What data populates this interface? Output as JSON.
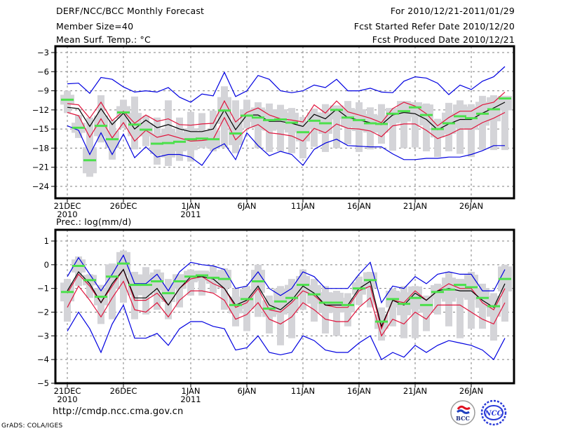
{
  "header": {
    "title": "DERF/NCC/BCC Monthly Forecast",
    "member_size": "Member Size=40",
    "variable": "Mean Surf. Temp.: °C",
    "period": "For 2010/12/21-2011/01/29",
    "started_date": "Fcst Started Refer Date 2010/12/20",
    "produced_date": "Fcst Produced Date 2010/12/21"
  },
  "footer": {
    "url": "http://cmdp.ncc.cma.gov.cn",
    "credit": "GrADS: COLA/IGES",
    "logo_left_label": "BCC",
    "logo_right_label": "NCC"
  },
  "colors": {
    "envelope": "#0000e0",
    "spread": "#e0143c",
    "mean": "#000000",
    "member": "#4ce04c",
    "box": "#d4d4d8",
    "grid": "#808080"
  },
  "chart_data": [
    {
      "type": "line",
      "title": "Mean Surf. Temp.: °C",
      "ylabel": "Mean Surf. Temp. (°C)",
      "ylim": [
        -26,
        -2
      ],
      "yticks": [
        -3,
        -6,
        -9,
        -12,
        -15,
        -18,
        -21,
        -24
      ],
      "ytick_labels": [
        "-3",
        "-6",
        "-9",
        "-12",
        "-15",
        "-18",
        "-21",
        "-24"
      ],
      "xticks": [
        0,
        5,
        11,
        16,
        21,
        26,
        31,
        36
      ],
      "xtick_labels": [
        "21DEC",
        "26DEC",
        "1JAN",
        "6JAN",
        "11JAN",
        "16JAN",
        "21JAN",
        "26JAN"
      ],
      "xtick_sublabels": [
        "2010",
        "",
        "2011",
        "",
        "",
        "",
        "",
        ""
      ],
      "grid": true,
      "x_days": 40,
      "series": [
        {
          "name": "max",
          "color_key": "envelope",
          "values": [
            -7.9,
            -7.8,
            -9.4,
            -6.9,
            -7.2,
            -8.4,
            -9.2,
            -9.0,
            -9.2,
            -8.5,
            -10.0,
            -10.8,
            -9.5,
            -9.8,
            -6.1,
            -9.9,
            -9.0,
            -6.6,
            -7.2,
            -9.0,
            -9.3,
            -9.0,
            -8.1,
            -8.5,
            -7.2,
            -9.0,
            -9.0,
            -8.6,
            -9.2,
            -9.3,
            -7.5,
            -6.8,
            -7.0,
            -7.8,
            -9.6,
            -8.1,
            -8.8,
            -7.5,
            -6.8,
            -5.2
          ]
        },
        {
          "name": "upper",
          "color_key": "spread",
          "values": [
            -11.0,
            -11.2,
            -13.3,
            -10.8,
            -13.7,
            -12.2,
            -14.1,
            -12.8,
            -13.8,
            -13.4,
            -14.3,
            -14.4,
            -14.2,
            -14.1,
            -10.6,
            -13.9,
            -12.4,
            -11.7,
            -12.8,
            -13.4,
            -13.6,
            -13.9,
            -11.2,
            -12.5,
            -10.6,
            -12.3,
            -12.8,
            -13.3,
            -14.0,
            -11.8,
            -10.8,
            -11.4,
            -12.6,
            -14.5,
            -13.2,
            -12.2,
            -12.2,
            -11.2,
            -10.8,
            -9.2
          ]
        },
        {
          "name": "mean",
          "color_key": "mean",
          "values": [
            -11.6,
            -11.8,
            -14.6,
            -11.8,
            -14.3,
            -12.5,
            -15.0,
            -13.6,
            -14.8,
            -14.3,
            -15.0,
            -15.4,
            -15.4,
            -15.0,
            -12.0,
            -15.1,
            -12.8,
            -12.8,
            -13.8,
            -13.8,
            -14.1,
            -14.6,
            -12.7,
            -13.4,
            -11.9,
            -13.2,
            -13.6,
            -14.0,
            -14.3,
            -12.8,
            -12.4,
            -12.6,
            -13.5,
            -15.1,
            -14.2,
            -13.5,
            -13.5,
            -12.5,
            -11.7,
            -10.8
          ]
        },
        {
          "name": "lower",
          "color_key": "spread",
          "values": [
            -12.4,
            -12.9,
            -16.3,
            -13.4,
            -16.4,
            -14.0,
            -16.9,
            -15.2,
            -16.3,
            -15.9,
            -16.4,
            -16.9,
            -16.8,
            -16.6,
            -13.2,
            -16.7,
            -15.0,
            -14.3,
            -15.6,
            -15.8,
            -16.1,
            -16.9,
            -14.9,
            -15.6,
            -14.2,
            -14.9,
            -15.0,
            -15.3,
            -16.2,
            -14.5,
            -14.2,
            -14.2,
            -15.2,
            -16.5,
            -15.9,
            -15.0,
            -15.0,
            -14.0,
            -13.3,
            -12.4
          ]
        },
        {
          "name": "min",
          "color_key": "envelope",
          "values": [
            -14.5,
            -15.2,
            -19.0,
            -15.6,
            -19.0,
            -15.8,
            -19.5,
            -17.8,
            -19.4,
            -19.0,
            -19.0,
            -19.4,
            -20.7,
            -18.2,
            -17.3,
            -19.8,
            -15.6,
            -17.6,
            -19.2,
            -18.5,
            -19.0,
            -20.7,
            -18.2,
            -17.2,
            -16.6,
            -17.6,
            -17.7,
            -17.8,
            -17.8,
            -18.9,
            -19.8,
            -19.8,
            -19.6,
            -19.6,
            -19.4,
            -19.4,
            -19.0,
            -18.4,
            -17.6,
            -17.6
          ]
        },
        {
          "name": "member",
          "color_key": "member",
          "values": [
            -10.4,
            -14.8,
            -19.9,
            -14.5,
            -16.6,
            -12.4,
            -14.3,
            -15.1,
            -17.3,
            -17.2,
            -17.0,
            -16.6,
            -16.5,
            -16.6,
            -12.1,
            -15.7,
            -12.9,
            -13.2,
            -13.6,
            -13.5,
            -14.0,
            -15.5,
            -13.7,
            -14.1,
            -12.0,
            -13.2,
            -13.6,
            -14.1,
            -14.2,
            -12.6,
            -12.2,
            -11.6,
            -12.8,
            -15.0,
            -14.1,
            -13.0,
            -13.3,
            -12.6,
            -11.9,
            -10.2
          ]
        },
        {
          "name": "box_high",
          "color_key": "box",
          "values": [
            -9.0,
            -12.8,
            -13.2,
            -9.7,
            -13.6,
            -10.4,
            -9.9,
            -12.9,
            -13.2,
            -10.5,
            -13.2,
            -12.3,
            -12.5,
            -12.1,
            -8.3,
            -10.5,
            -10.4,
            -10.8,
            -11.0,
            -11.2,
            -11.7,
            -13.1,
            -11.8,
            -11.1,
            -11.3,
            -10.6,
            -10.8,
            -11.6,
            -11.1,
            -11.7,
            -10.6,
            -10.8,
            -11.0,
            -13.4,
            -10.9,
            -10.5,
            -11.1,
            -9.8,
            -9.7,
            -9.8
          ]
        },
        {
          "name": "box_low",
          "color_key": "box",
          "values": [
            -12.5,
            -16.4,
            -22.5,
            -17.1,
            -19.8,
            -14.9,
            -18.2,
            -17.7,
            -20.6,
            -20.8,
            -20.0,
            -20.1,
            -18.0,
            -18.5,
            -17.9,
            -18.8,
            -14.9,
            -18.0,
            -18.6,
            -18.5,
            -18.8,
            -19.6,
            -17.8,
            -18.6,
            -18.0,
            -17.4,
            -18.6,
            -18.2,
            -17.3,
            -18.4,
            -18.0,
            -17.9,
            -18.5,
            -19.4,
            -18.5,
            -18.9,
            -19.4,
            -18.3,
            -18.3,
            -18.3
          ]
        }
      ]
    },
    {
      "type": "line",
      "title": "Prec.: log(mm/d)",
      "ylabel": "Prec. log(mm/d)",
      "ylim": [
        -5,
        1.5
      ],
      "yticks": [
        1,
        0,
        -1,
        -2,
        -3,
        -4,
        -5
      ],
      "ytick_labels": [
        "1",
        "0",
        "-1",
        "-2",
        "-3",
        "-4",
        "-5"
      ],
      "xticks": [
        0,
        5,
        11,
        16,
        21,
        26,
        31,
        36
      ],
      "xtick_labels": [
        "21DEC",
        "26DEC",
        "1JAN",
        "6JAN",
        "11JAN",
        "16JAN",
        "21JAN",
        "26JAN"
      ],
      "xtick_sublabels": [
        "2010",
        "",
        "2011",
        "",
        "",
        "",
        "",
        ""
      ],
      "grid": true,
      "x_days": 40,
      "series": [
        {
          "name": "max",
          "color_key": "envelope",
          "values": [
            -0.5,
            0.3,
            -0.4,
            -1.1,
            -0.4,
            0.4,
            -0.8,
            -0.8,
            -0.4,
            -1.1,
            -0.3,
            0.1,
            0.0,
            -0.05,
            -0.2,
            -1.0,
            -0.9,
            -0.3,
            -1.0,
            -1.3,
            -1.0,
            -0.3,
            -0.5,
            -1.0,
            -1.0,
            -1.0,
            -0.4,
            0.1,
            -1.6,
            -0.9,
            -1.0,
            -0.5,
            -0.8,
            -0.4,
            -0.3,
            -0.4,
            -0.4,
            -1.1,
            -1.1,
            -0.2
          ]
        },
        {
          "name": "upper",
          "color_key": "spread",
          "values": [
            -1.2,
            -0.4,
            -0.9,
            -1.6,
            -0.9,
            -0.2,
            -1.5,
            -1.5,
            -1.2,
            -1.7,
            -1.0,
            -0.6,
            -0.5,
            -0.8,
            -1.0,
            -1.8,
            -1.6,
            -1.0,
            -1.9,
            -2.0,
            -1.6,
            -1.1,
            -1.3,
            -1.7,
            -1.8,
            -1.8,
            -1.1,
            -0.9,
            -2.7,
            -1.5,
            -1.6,
            -1.1,
            -1.5,
            -1.1,
            -0.8,
            -1.0,
            -1.0,
            -1.6,
            -1.9,
            -1.0
          ]
        },
        {
          "name": "mean",
          "color_key": "mean",
          "values": [
            -1.1,
            -0.3,
            -0.8,
            -1.6,
            -0.8,
            -0.2,
            -1.4,
            -1.4,
            -1.0,
            -1.7,
            -1.0,
            -0.5,
            -0.5,
            -0.6,
            -1.0,
            -1.7,
            -1.5,
            -0.9,
            -1.7,
            -1.9,
            -1.5,
            -0.9,
            -1.2,
            -1.7,
            -1.7,
            -1.7,
            -1.0,
            -0.7,
            -2.6,
            -1.5,
            -1.7,
            -1.2,
            -1.5,
            -1.1,
            -1.0,
            -1.1,
            -1.1,
            -1.5,
            -1.8,
            -0.8
          ]
        },
        {
          "name": "lower",
          "color_key": "spread",
          "values": [
            -1.8,
            -0.9,
            -1.5,
            -2.2,
            -1.4,
            -0.7,
            -1.9,
            -2.0,
            -1.6,
            -2.2,
            -1.5,
            -1.1,
            -1.1,
            -1.2,
            -1.5,
            -2.3,
            -2.1,
            -1.6,
            -2.3,
            -2.5,
            -2.2,
            -1.6,
            -1.9,
            -2.3,
            -2.4,
            -2.4,
            -1.8,
            -1.4,
            -3.0,
            -2.3,
            -2.5,
            -2.0,
            -2.3,
            -1.7,
            -1.7,
            -1.7,
            -2.0,
            -2.3,
            -2.5,
            -1.6
          ]
        },
        {
          "name": "min",
          "color_key": "envelope",
          "values": [
            -2.8,
            -2.0,
            -2.7,
            -3.7,
            -2.5,
            -1.7,
            -3.1,
            -3.1,
            -2.9,
            -3.4,
            -2.7,
            -2.4,
            -2.4,
            -2.6,
            -2.7,
            -3.6,
            -3.5,
            -3.0,
            -3.7,
            -3.8,
            -3.7,
            -3.0,
            -3.2,
            -3.6,
            -3.7,
            -3.7,
            -3.3,
            -3.0,
            -4.0,
            -3.7,
            -3.9,
            -3.4,
            -3.7,
            -3.4,
            -3.2,
            -3.3,
            -3.4,
            -3.6,
            -4.0,
            -3.1
          ]
        },
        {
          "name": "member",
          "color_key": "member",
          "values": [
            -1.15,
            -0.05,
            -0.65,
            -1.35,
            -0.5,
            0.05,
            -0.85,
            -0.85,
            -0.7,
            -1.2,
            -0.7,
            -0.5,
            -0.45,
            -0.55,
            -0.6,
            -1.7,
            -1.45,
            -0.7,
            -1.85,
            -1.55,
            -1.4,
            -0.85,
            -1.25,
            -1.6,
            -1.6,
            -1.7,
            -1.0,
            -0.65,
            -2.4,
            -1.45,
            -1.65,
            -1.4,
            -1.7,
            -1.15,
            -1.05,
            -0.85,
            -0.95,
            -1.4,
            -1.75,
            -0.6
          ]
        },
        {
          "name": "box_high",
          "color_key": "box",
          "values": [
            -0.6,
            0.35,
            -0.4,
            -0.85,
            0.05,
            0.6,
            -0.3,
            -0.1,
            -0.2,
            -0.6,
            -0.4,
            -0.2,
            -0.25,
            -0.05,
            -0.15,
            -1.0,
            -0.9,
            0.0,
            -1.3,
            -0.9,
            -0.6,
            -0.2,
            -0.6,
            -0.9,
            -1.1,
            -1.2,
            -0.5,
            -0.3,
            -1.8,
            -1.0,
            -0.9,
            -0.9,
            -1.3,
            -0.8,
            -0.3,
            -0.6,
            -0.3,
            -0.8,
            -1.2,
            0.0
          ]
        },
        {
          "name": "box_low",
          "color_key": "box",
          "values": [
            -2.4,
            -0.9,
            -1.4,
            -2.5,
            -2.3,
            -1.6,
            -2.3,
            -2.1,
            -1.9,
            -2.3,
            -1.8,
            -1.3,
            -1.3,
            -1.2,
            -1.9,
            -2.6,
            -2.8,
            -2.2,
            -2.9,
            -3.4,
            -3.1,
            -1.9,
            -2.4,
            -2.9,
            -3.0,
            -2.6,
            -1.7,
            -1.8,
            -3.2,
            -2.6,
            -3.1,
            -3.1,
            -2.8,
            -2.1,
            -2.6,
            -3.1,
            -2.7,
            -2.7,
            -3.2,
            -2.4
          ]
        }
      ]
    }
  ]
}
